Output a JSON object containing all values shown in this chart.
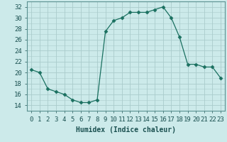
{
  "x": [
    0,
    1,
    2,
    3,
    4,
    5,
    6,
    7,
    8,
    9,
    10,
    11,
    12,
    13,
    14,
    15,
    16,
    17,
    18,
    19,
    20,
    21,
    22,
    23
  ],
  "y": [
    20.5,
    20.0,
    17.0,
    16.5,
    16.0,
    15.0,
    14.5,
    14.5,
    15.0,
    27.5,
    29.5,
    30.0,
    31.0,
    31.0,
    31.0,
    31.5,
    32.0,
    30.0,
    26.5,
    21.5,
    21.5,
    21.0,
    21.0,
    19.0
  ],
  "line_color": "#1a7060",
  "marker": "D",
  "marker_size": 2.5,
  "bg_color": "#cceaea",
  "grid_color": "#aacccc",
  "xlabel": "Humidex (Indice chaleur)",
  "xlim": [
    -0.5,
    23.5
  ],
  "ylim": [
    13,
    33
  ],
  "yticks": [
    14,
    16,
    18,
    20,
    22,
    24,
    26,
    28,
    30,
    32
  ],
  "xtick_labels": [
    "0",
    "1",
    "2",
    "3",
    "4",
    "5",
    "6",
    "7",
    "8",
    "9",
    "10",
    "11",
    "12",
    "13",
    "14",
    "15",
    "16",
    "17",
    "18",
    "19",
    "20",
    "21",
    "22",
    "23"
  ],
  "label_fontsize": 7,
  "tick_fontsize": 6.5
}
